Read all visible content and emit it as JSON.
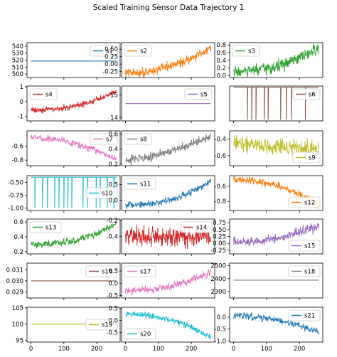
{
  "figure": {
    "title": "Scaled Training Sensor Data Trajectory 1"
  },
  "chart_data": [
    {
      "type": "line",
      "series": [
        {
          "name": "s1",
          "color": "#1f77b4",
          "kind": "flat",
          "value": 518.67
        }
      ],
      "ylim": [
        495,
        545
      ],
      "yticks": [
        500,
        510,
        520,
        530,
        540
      ],
      "xlim": [
        -12,
        271
      ],
      "xticks": [],
      "legend": "top-right"
    },
    {
      "type": "line",
      "series": [
        {
          "name": "s2",
          "color": "#ff7f0e",
          "kind": "noisy",
          "start": -0.3,
          "end": 0.55,
          "curve": 2,
          "noise": 0.13
        }
      ],
      "ylim": [
        -0.45,
        0.72
      ],
      "yticks": [
        -0.25,
        0.0,
        0.25,
        0.5
      ],
      "yfmt": 2,
      "xlim": [
        -12,
        271
      ],
      "xticks": [],
      "legend": "top-left"
    },
    {
      "type": "line",
      "series": [
        {
          "name": "s3",
          "color": "#2ca02c",
          "kind": "noisy",
          "start": 0.1,
          "end": 0.72,
          "curve": 2.2,
          "noise": 0.14
        }
      ],
      "ylim": [
        -0.05,
        0.86
      ],
      "yticks": [
        0.0,
        0.2,
        0.4,
        0.6,
        0.8
      ],
      "yfmt": 1,
      "xlim": [
        -12,
        271
      ],
      "xticks": [],
      "legend": "top-left"
    },
    {
      "type": "line",
      "series": [
        {
          "name": "s4",
          "color": "#d62728",
          "kind": "noisy",
          "start": -0.55,
          "end": 0.75,
          "curve": 2.5,
          "noise": 0.18
        }
      ],
      "ylim": [
        -1.3,
        1.05
      ],
      "yticks": [
        -1,
        0,
        1
      ],
      "xlim": [
        -12,
        271
      ],
      "xticks": [],
      "legend": "top-left"
    },
    {
      "type": "line",
      "series": [
        {
          "name": "s5",
          "color": "#9467bd",
          "kind": "flat",
          "value": 14.62
        }
      ],
      "ylim": [
        13.85,
        15.4
      ],
      "yticks": [
        14,
        15
      ],
      "xlim": [
        -12,
        271
      ],
      "xticks": [],
      "legend": "top-right"
    },
    {
      "type": "line",
      "series": [
        {
          "name": "s6",
          "color": "#8c564b",
          "kind": "spikes",
          "value": 1.0,
          "low": 0.42,
          "spikes": [
            42,
            55,
            68,
            93,
            105,
            143,
            160,
            175,
            218
          ]
        }
      ],
      "ylim": [
        0.4,
        1.02
      ],
      "yticks": [],
      "xlim": [
        -12,
        271
      ],
      "xticks": [],
      "legend": "top-right"
    },
    {
      "type": "line",
      "series": [
        {
          "name": "s7",
          "color": "#e377c2",
          "kind": "noisy",
          "start": -0.48,
          "end": -0.8,
          "curve": 2,
          "noise": 0.04
        }
      ],
      "ylim": [
        -0.88,
        -0.38
      ],
      "yticks": [
        -0.8,
        -0.6
      ],
      "yfmt": 1,
      "xlim": [
        -12,
        271
      ],
      "xticks": [],
      "legend": "top-right"
    },
    {
      "type": "line",
      "series": [
        {
          "name": "s8",
          "color": "#7f7f7f",
          "kind": "noisy",
          "start": 0.27,
          "end": 0.58,
          "curve": 1.8,
          "noise": 0.05
        }
      ],
      "ylim": [
        0.18,
        0.64
      ],
      "yticks": [
        0.2,
        0.4,
        0.6
      ],
      "yfmt": 1,
      "xlim": [
        -12,
        271
      ],
      "xticks": [],
      "legend": "top-left"
    },
    {
      "type": "line",
      "series": [
        {
          "name": "s9",
          "color": "#bcbd22",
          "kind": "noisy",
          "start": -0.45,
          "end": -0.52,
          "curve": 1,
          "noise": 0.08
        }
      ],
      "ylim": [
        -0.72,
        -0.3
      ],
      "yticks": [
        -0.6,
        -0.4
      ],
      "yfmt": 1,
      "xlim": [
        -12,
        271
      ],
      "xticks": [],
      "legend": "bottom-right"
    },
    {
      "type": "line",
      "series": [
        {
          "name": "s10",
          "color": "#17becf",
          "kind": "spikes",
          "value": -0.4,
          "low": -1.0,
          "spikes": [
            12,
            35,
            50,
            72,
            85,
            100,
            112,
            124,
            158,
            172,
            198,
            210,
            232,
            252
          ]
        }
      ],
      "ylim": [
        -1.05,
        -0.37
      ],
      "yticks": [
        -1.0,
        -0.75,
        -0.5
      ],
      "yfmt": 2,
      "xlim": [
        -12,
        271
      ],
      "xticks": [],
      "legend": "center-right"
    },
    {
      "type": "line",
      "series": [
        {
          "name": "s11",
          "color": "#1f77b4",
          "kind": "noisy",
          "start": -0.15,
          "end": 0.6,
          "curve": 2.3,
          "noise": 0.09
        }
      ],
      "ylim": [
        -0.32,
        0.78
      ],
      "yticks": [
        0.0,
        0.5
      ],
      "yfmt": 1,
      "xlim": [
        -12,
        271
      ],
      "xticks": [],
      "legend": "top-left"
    },
    {
      "type": "line",
      "series": [
        {
          "name": "s12",
          "color": "#ff7f0e",
          "kind": "noisy",
          "start": -0.52,
          "end": -0.85,
          "curve": 2.2,
          "noise": 0.04
        }
      ],
      "ylim": [
        -0.92,
        -0.46
      ],
      "yticks": [
        -0.8,
        -0.6
      ],
      "yfmt": 1,
      "xlim": [
        -12,
        271
      ],
      "xticks": [],
      "legend": "bottom-right"
    },
    {
      "type": "line",
      "series": [
        {
          "name": "s13",
          "color": "#2ca02c",
          "kind": "noisy",
          "start": 0.3,
          "end": 0.58,
          "curve": 2.5,
          "noise": 0.04
        }
      ],
      "ylim": [
        0.17,
        0.64
      ],
      "yticks": [
        0.2,
        0.4,
        0.6
      ],
      "yfmt": 1,
      "xlim": [
        -12,
        271
      ],
      "xticks": [],
      "legend": "top-left"
    },
    {
      "type": "line",
      "series": [
        {
          "name": "s14",
          "color": "#d62728",
          "kind": "noisy",
          "start": -0.4,
          "end": -0.4,
          "curve": 1,
          "noise": 0.1
        }
      ],
      "ylim": [
        -0.62,
        -0.18
      ],
      "yticks": [
        -0.4,
        -0.2
      ],
      "yfmt": 1,
      "xlim": [
        -12,
        271
      ],
      "xticks": [],
      "legend": "top-right"
    },
    {
      "type": "line",
      "series": [
        {
          "name": "s15",
          "color": "#9467bd",
          "kind": "noisy",
          "start": 0.05,
          "end": 0.65,
          "curve": 2,
          "noise": 0.15
        }
      ],
      "ylim": [
        -0.38,
        0.88
      ],
      "yticks": [
        -0.25,
        0.0,
        0.25,
        0.5,
        0.75
      ],
      "yfmt": 2,
      "xlim": [
        -12,
        271
      ],
      "xticks": [],
      "legend": "bottom-right"
    },
    {
      "type": "line",
      "series": [
        {
          "name": "s16",
          "color": "#8c564b",
          "kind": "flat",
          "value": 0.03
        }
      ],
      "ylim": [
        0.02845,
        0.0316
      ],
      "yticks": [
        0.029,
        0.03,
        0.031
      ],
      "yfmt": 3,
      "xlim": [
        -12,
        271
      ],
      "xticks": [],
      "legend": "top-right"
    },
    {
      "type": "line",
      "series": [
        {
          "name": "s17",
          "color": "#e377c2",
          "kind": "noisy",
          "start": -0.3,
          "end": 0.45,
          "curve": 2.2,
          "noise": 0.13
        }
      ],
      "ylim": [
        -0.6,
        0.82
      ],
      "yticks": [
        -0.5,
        0.0,
        0.5
      ],
      "yfmt": 1,
      "xlim": [
        -12,
        271
      ],
      "xticks": [],
      "legend": "top-left"
    },
    {
      "type": "line",
      "series": [
        {
          "name": "s18",
          "color": "#7f7f7f",
          "kind": "flat",
          "value": 2388
        }
      ],
      "ylim": [
        2250,
        2520
      ],
      "yticks": [
        2300,
        2400,
        2500
      ],
      "xlim": [
        -12,
        271
      ],
      "xticks": [],
      "legend": "top-right"
    },
    {
      "type": "line",
      "series": [
        {
          "name": "s19",
          "color": "#bcbd22",
          "kind": "flat",
          "value": 100
        }
      ],
      "ylim": [
        94.5,
        105.2
      ],
      "yticks": [
        95,
        100,
        105
      ],
      "xlim": [
        -12,
        271
      ],
      "xticks": [
        0,
        100,
        200
      ],
      "legend": "center-right"
    },
    {
      "type": "line",
      "series": [
        {
          "name": "s20",
          "color": "#17becf",
          "kind": "noisy",
          "start": 0.25,
          "end": -0.7,
          "curve": 2.2,
          "noise": 0.11
        }
      ],
      "ylim": [
        -0.9,
        0.55
      ],
      "yticks": [
        -0.5,
        0.0,
        0.5
      ],
      "yfmt": 1,
      "xlim": [
        -12,
        271
      ],
      "xticks": [
        0,
        100,
        200
      ],
      "legend": "bottom-left"
    },
    {
      "type": "line",
      "series": [
        {
          "name": "s21",
          "color": "#1f77b4",
          "kind": "noisy",
          "start": 0.05,
          "end": -0.65,
          "curve": 2,
          "noise": 0.12
        }
      ],
      "ylim": [
        -1.05,
        0.42
      ],
      "yticks": [
        -1.0,
        -0.5,
        0.0
      ],
      "yfmt": 1,
      "xlim": [
        -12,
        271
      ],
      "xticks": [
        0,
        100,
        200
      ],
      "legend": "top-right"
    }
  ]
}
